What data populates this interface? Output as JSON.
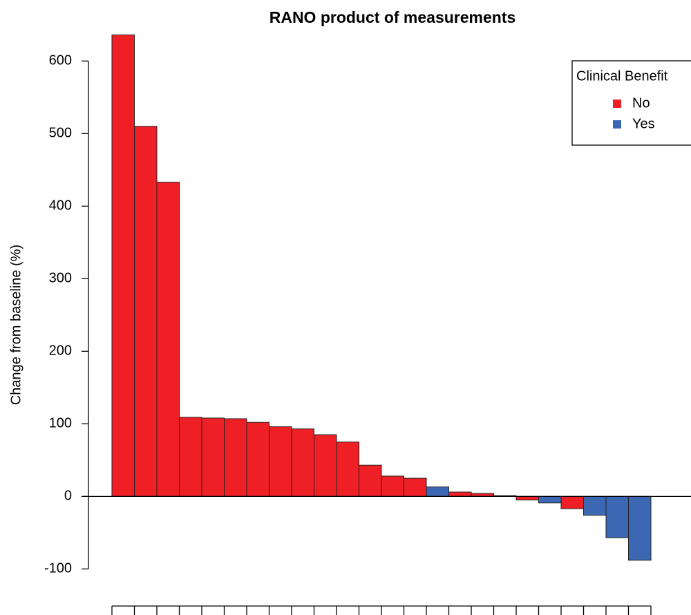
{
  "chart_data": {
    "type": "bar",
    "title": "RANO product of measurements",
    "y_label": "Change from baseline (%)",
    "legend_title": "Clinical Benefit",
    "categories": [
      null,
      null,
      null,
      null,
      null,
      null,
      null,
      null,
      null,
      null,
      null,
      null,
      null,
      null,
      null,
      null,
      null,
      null,
      null,
      null,
      null,
      null,
      null,
      null
    ],
    "series": [
      {
        "name": "No",
        "color": "#ee1f25",
        "values": [
          636,
          510,
          433,
          109,
          108,
          107,
          102,
          96,
          93,
          85,
          75,
          43,
          28,
          25,
          null,
          6,
          4,
          1,
          -5,
          null,
          -17,
          null,
          null,
          null
        ]
      },
      {
        "name": "Yes",
        "color": "#3c67b3",
        "values": [
          null,
          null,
          null,
          null,
          null,
          null,
          null,
          null,
          null,
          null,
          null,
          null,
          null,
          null,
          13,
          null,
          null,
          null,
          null,
          -9,
          null,
          -26,
          -57,
          -88
        ]
      }
    ],
    "ylim": [
      -133,
      646
    ],
    "yticks": [
      -100,
      0,
      100,
      200,
      300,
      400,
      500,
      600
    ],
    "legend": "top-right"
  }
}
